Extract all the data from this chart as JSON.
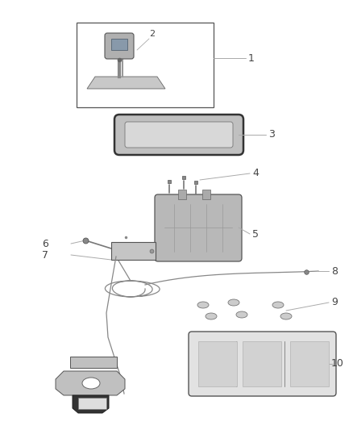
{
  "bg_color": "#ffffff",
  "lc": "#888888",
  "tc": "#555555",
  "figsize": [
    4.38,
    5.33
  ],
  "dpi": 100
}
